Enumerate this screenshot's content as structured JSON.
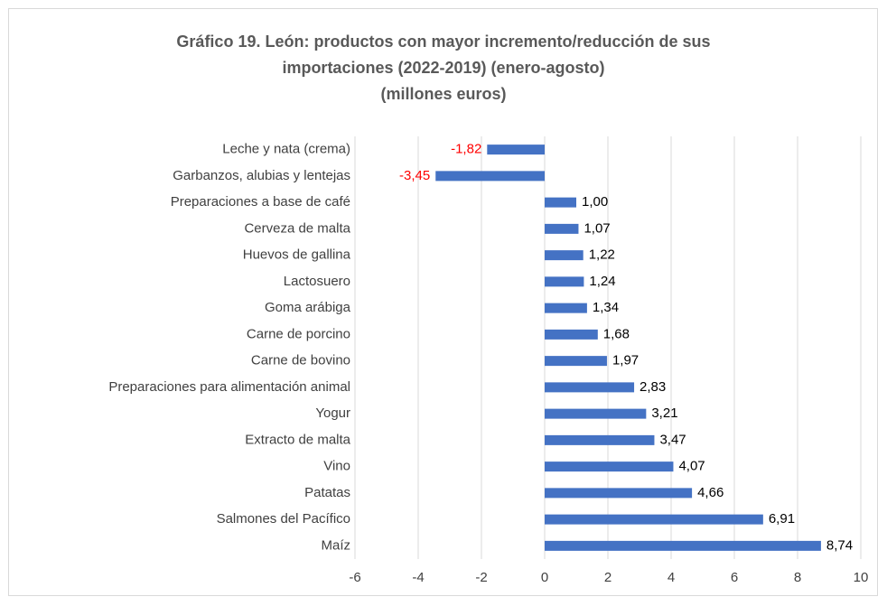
{
  "chart_data": {
    "type": "barh",
    "title": [
      "Gráfico 19. León: productos con mayor incremento/reducción de sus",
      "importaciones (2022-2019) (enero-agosto)",
      "(millones euros)"
    ],
    "categories": [
      "Leche y nata (crema)",
      "Garbanzos, alubias y lentejas",
      "Preparaciones a base de café",
      "Cerveza de malta",
      "Huevos de gallina",
      "Lactosuero",
      "Goma arábiga",
      "Carne de porcino",
      "Carne de bovino",
      "Preparaciones para alimentación animal",
      "Yogur",
      "Extracto de malta",
      "Vino",
      "Patatas",
      "Salmones del Pacífico",
      "Maíz"
    ],
    "values": [
      -1.82,
      -3.45,
      1.0,
      1.07,
      1.22,
      1.24,
      1.34,
      1.68,
      1.97,
      2.83,
      3.21,
      3.47,
      4.07,
      4.66,
      6.91,
      8.74
    ],
    "value_labels": [
      "-1,82",
      "-3,45",
      "1,00",
      "1,07",
      "1,22",
      "1,24",
      "1,34",
      "1,68",
      "1,97",
      "2,83",
      "3,21",
      "3,47",
      "4,07",
      "4,66",
      "6,91",
      "8,74"
    ],
    "color": "#4472c4",
    "label_color": "#000000",
    "negative_label_color": "#ff0000",
    "xlim": [
      -6,
      10
    ],
    "xticks": [
      -6,
      -4,
      -2,
      0,
      2,
      4,
      6,
      8,
      10
    ],
    "grid": true
  }
}
